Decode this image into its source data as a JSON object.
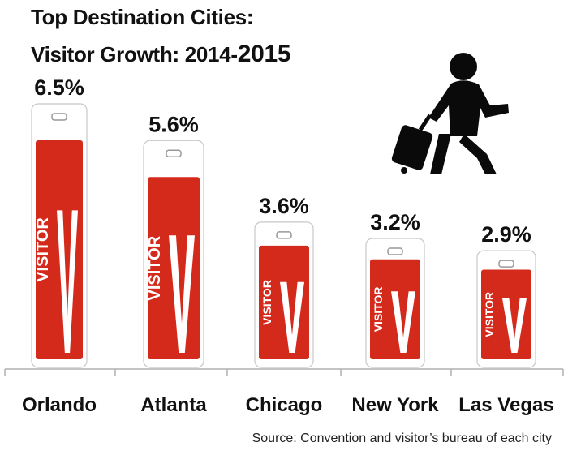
{
  "title_line1": "Top Destination Cities:",
  "title_line2_prefix": "Visitor Growth: 2014-",
  "title_line2_year": "2015",
  "source": "Source: Convention and visitor’s bureau of each city",
  "tag_text": "VISITOR",
  "tag_letter": "V",
  "colors": {
    "tag_red": "#d42a1c",
    "tag_white": "#ffffff",
    "axis": "#b0b0b0",
    "icon": "#0a0a0a"
  },
  "icon": "person-with-rolling-suitcase-icon",
  "chart_data": {
    "type": "bar",
    "categories": [
      "Orlando",
      "Atlanta",
      "Chicago",
      "New York",
      "Las Vegas"
    ],
    "values": [
      6.5,
      5.6,
      3.6,
      3.2,
      2.9
    ],
    "labels": [
      "6.5%",
      "5.6%",
      "3.6%",
      "3.2%",
      "2.9%"
    ],
    "title": "Top Destination Cities: Visitor Growth: 2014-2015",
    "ylim": [
      0,
      6.5
    ],
    "grid": false
  }
}
